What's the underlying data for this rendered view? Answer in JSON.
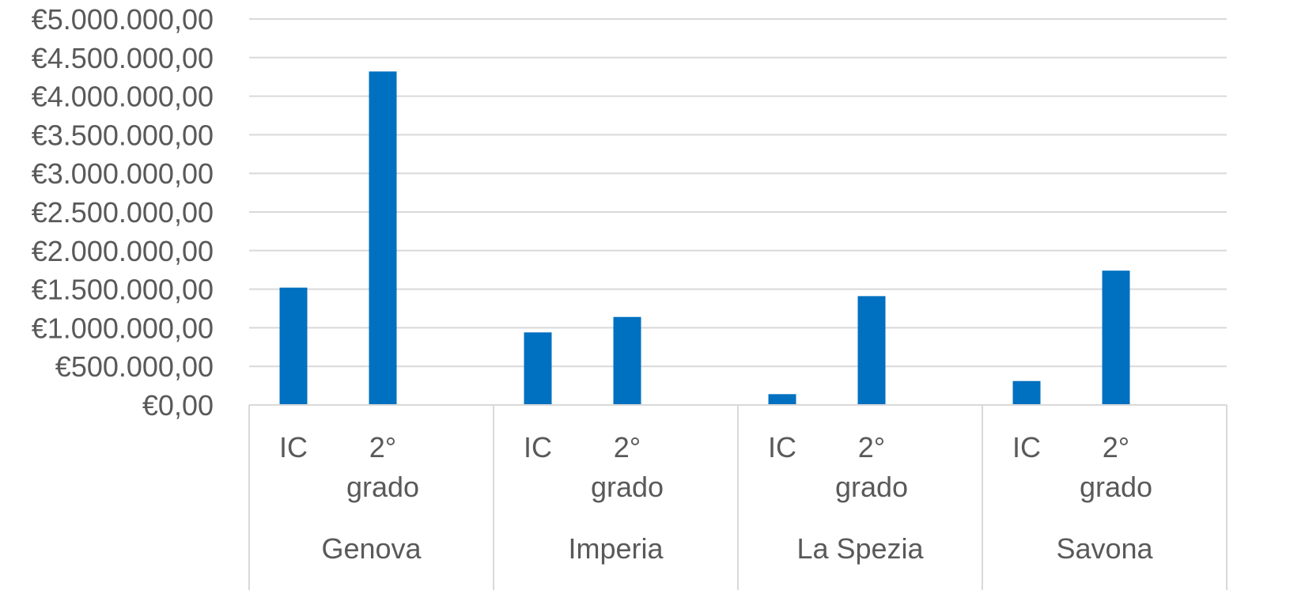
{
  "chart_data": {
    "type": "bar",
    "title": "",
    "xlabel": "",
    "ylabel": "",
    "ylim": [
      0,
      5000000
    ],
    "y_ticks": [
      {
        "value": 0,
        "label": "€0,00"
      },
      {
        "value": 500000,
        "label": "€500.000,00"
      },
      {
        "value": 1000000,
        "label": "€1.000.000,00"
      },
      {
        "value": 1500000,
        "label": "€1.500.000,00"
      },
      {
        "value": 2000000,
        "label": "€2.000.000,00"
      },
      {
        "value": 2500000,
        "label": "€2.500.000,00"
      },
      {
        "value": 3000000,
        "label": "€3.000.000,00"
      },
      {
        "value": 3500000,
        "label": "€3.500.000,00"
      },
      {
        "value": 4000000,
        "label": "€4.000.000,00"
      },
      {
        "value": 4500000,
        "label": "€4.500.000,00"
      },
      {
        "value": 5000000,
        "label": "€5.000.000,00"
      }
    ],
    "grid": true,
    "legend": "none",
    "bar_color": "#0070C0",
    "groups": [
      {
        "name": "Genova",
        "categories": [
          {
            "label_lines": [
              "IC"
            ],
            "value": 1520000
          },
          {
            "label_lines": [
              "2°",
              "grado"
            ],
            "value": 4320000
          }
        ]
      },
      {
        "name": "Imperia",
        "categories": [
          {
            "label_lines": [
              "IC"
            ],
            "value": 940000
          },
          {
            "label_lines": [
              "2°",
              "grado"
            ],
            "value": 1140000
          }
        ]
      },
      {
        "name": "La Spezia",
        "categories": [
          {
            "label_lines": [
              "IC"
            ],
            "value": 140000
          },
          {
            "label_lines": [
              "2°",
              "grado"
            ],
            "value": 1410000
          }
        ]
      },
      {
        "name": "Savona",
        "categories": [
          {
            "label_lines": [
              "IC"
            ],
            "value": 310000
          },
          {
            "label_lines": [
              "2°",
              "grado"
            ],
            "value": 1740000
          }
        ]
      }
    ]
  }
}
